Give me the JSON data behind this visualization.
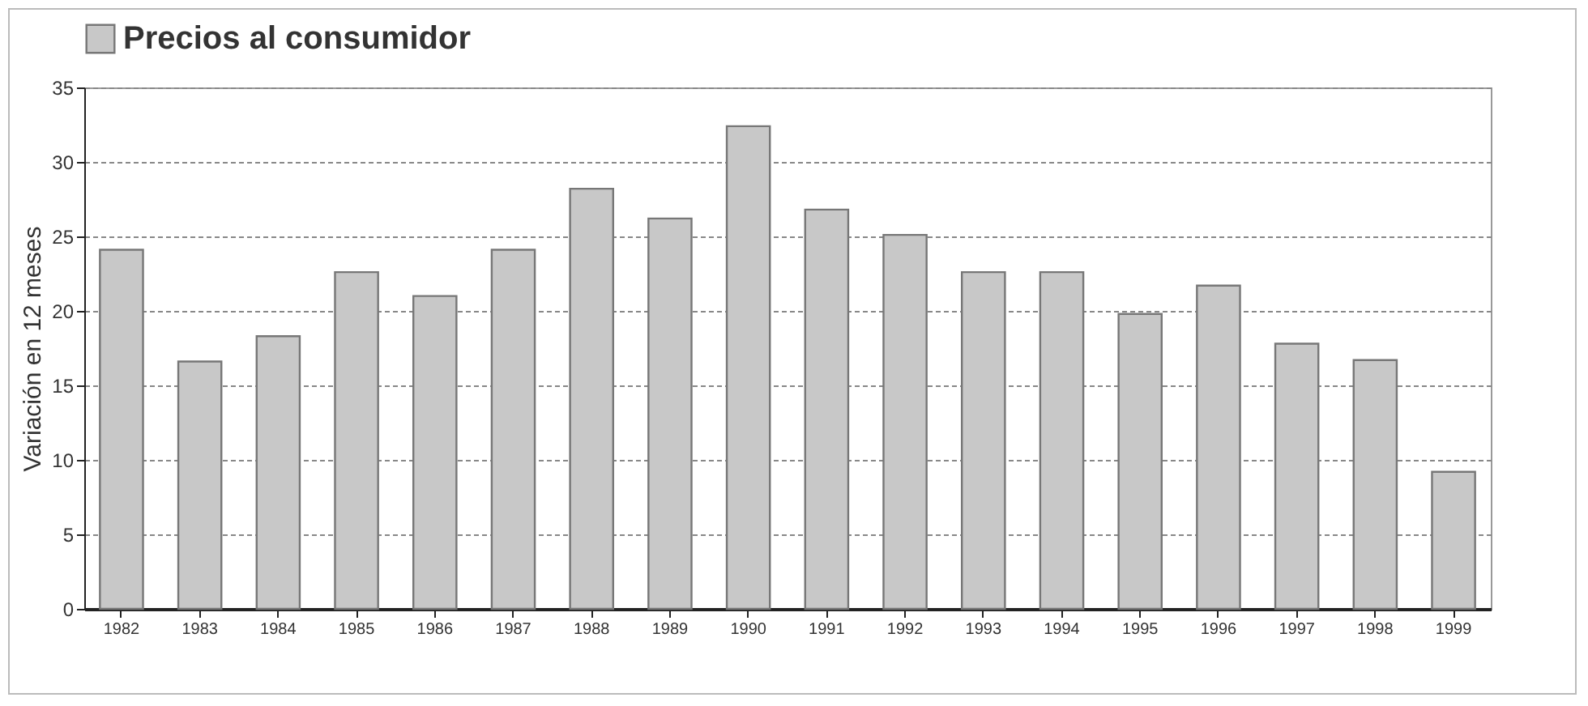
{
  "chart_data": {
    "type": "bar",
    "categories": [
      "1982",
      "1983",
      "1984",
      "1985",
      "1986",
      "1987",
      "1988",
      "1989",
      "1990",
      "1991",
      "1992",
      "1993",
      "1994",
      "1995",
      "1996",
      "1997",
      "1998",
      "1999"
    ],
    "series": [
      {
        "name": "Precios al consumidor",
        "color": "#c8c8c8",
        "values": [
          24.1,
          16.6,
          18.3,
          22.6,
          21.0,
          24.1,
          28.2,
          26.2,
          32.4,
          26.8,
          25.1,
          22.6,
          22.6,
          19.8,
          21.7,
          17.8,
          16.7,
          9.2
        ]
      }
    ],
    "ylabel": "Variación en 12 meses",
    "ylim": [
      0,
      35
    ],
    "yticks": [
      0,
      5,
      10,
      15,
      20,
      25,
      30,
      35
    ],
    "grid": "y",
    "legend": "top"
  }
}
